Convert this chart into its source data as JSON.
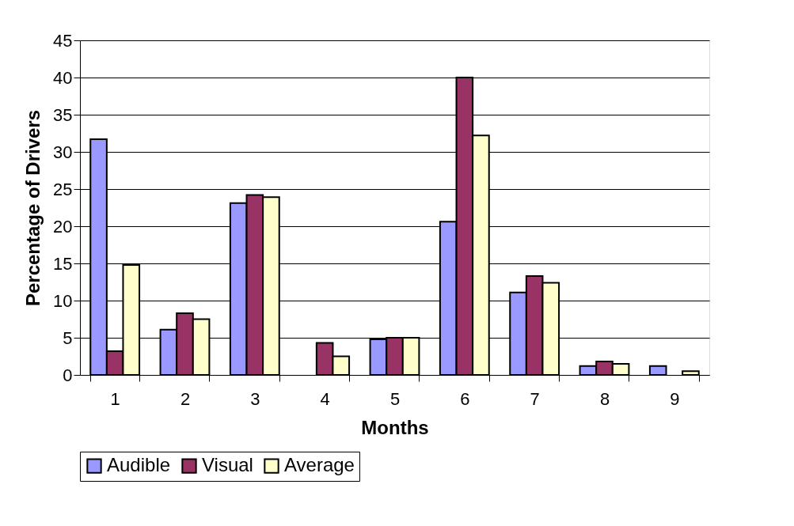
{
  "chart_data": {
    "type": "bar",
    "xlabel": "Months",
    "ylabel": "Percentage of Drivers",
    "categories": [
      "1",
      "2",
      "3",
      "4",
      "5",
      "6",
      "7",
      "8",
      "9"
    ],
    "series": [
      {
        "name": "Audible",
        "color": "#9999ff",
        "values": [
          31.7,
          6.1,
          23.1,
          null,
          4.8,
          20.6,
          11.1,
          1.2,
          1.2
        ]
      },
      {
        "name": "Visual",
        "color": "#993366",
        "values": [
          3.2,
          8.3,
          24.2,
          4.3,
          5.0,
          40.0,
          13.3,
          1.8,
          null
        ]
      },
      {
        "name": "Average",
        "color": "#ffffcc",
        "values": [
          14.8,
          7.5,
          23.9,
          2.5,
          5.0,
          32.2,
          12.4,
          1.5,
          0.5
        ]
      }
    ],
    "ylim": [
      0,
      45
    ],
    "yticks": [
      0,
      5,
      10,
      15,
      20,
      25,
      30,
      35,
      40,
      45
    ],
    "grid": "y",
    "legend": "bottom"
  }
}
